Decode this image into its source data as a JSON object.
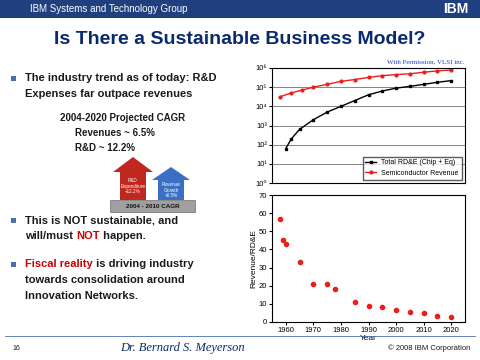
{
  "slide": {
    "header": "IBM Systems and Technology Group",
    "logo": "IBM",
    "title": "Is There a Sustainable Business Model?",
    "bullets": [
      {
        "lines": [
          [
            {
              "text": "The industry trend as of today: R&D"
            }
          ],
          [
            {
              "text": "Expenses far outpace revenues"
            }
          ]
        ]
      },
      {
        "lines": [
          [
            {
              "text": "This is NOT sustainable, and"
            }
          ],
          [
            {
              "text": "will/must "
            },
            {
              "text": "NOT",
              "emphasis": true
            },
            {
              "text": " happen."
            }
          ]
        ]
      },
      {
        "lines": [
          [
            {
              "text": "Fiscal reality",
              "emphasis": true
            },
            {
              "text": " is driving industry"
            }
          ],
          [
            {
              "text": "towards consolidation around"
            }
          ],
          [
            {
              "text": "Innovation Networks."
            }
          ]
        ]
      }
    ],
    "cagr": {
      "heading": "2004-2020 Projected CAGR",
      "items": [
        "Revenues ~ 6.5%",
        "R&D ~ 12.2%"
      ]
    },
    "inset": {
      "arrows": [
        {
          "label": "R&D\nExpenditure\n+12.2%",
          "color": "#c0271f"
        },
        {
          "label": "Revenue\nGrowth\n+6.5%",
          "color": "#3a6fc4"
        }
      ],
      "base": "2004 - 2010 CAGR"
    },
    "footer": {
      "page": "16",
      "author": "Dr. Bernard S. Meyerson",
      "copyright": "© 2008 IBM Corporation"
    }
  },
  "chart_data": [
    {
      "type": "line",
      "source": "With Permission, VLSI inc.",
      "log": "y",
      "grid": true,
      "tick_labels": "y",
      "legend": "lower right",
      "xlim": [
        1955,
        2025
      ],
      "ylim": [
        1,
        1000000
      ],
      "yticks": [
        {
          "value": 1,
          "label": "10⁰"
        },
        {
          "value": 10,
          "label": "10¹"
        },
        {
          "value": 100,
          "label": "10²"
        },
        {
          "value": 1000,
          "label": "10³"
        },
        {
          "value": 10000,
          "label": "10⁴"
        },
        {
          "value": 100000,
          "label": "10⁵"
        },
        {
          "value": 1000000,
          "label": "10⁶"
        }
      ],
      "series": [
        {
          "name": "Total RD&E (Chip + Eq)",
          "color": "#000000",
          "marker": "square",
          "x": [
            1960,
            1962,
            1965,
            1970,
            1975,
            1980,
            1985,
            1990,
            1995,
            2000,
            2005,
            2010,
            2015,
            2020
          ],
          "values": [
            63,
            200,
            630,
            2000,
            5000,
            10000,
            20000,
            40000,
            63000,
            89000,
            110000,
            140000,
            180000,
            220000
          ]
        },
        {
          "name": "Semiconductor Revenue",
          "color": "#e8201c",
          "marker": "circle",
          "x": [
            1958,
            1962,
            1966,
            1970,
            1975,
            1980,
            1985,
            1990,
            1995,
            2000,
            2005,
            2010,
            2015,
            2020
          ],
          "values": [
            32000,
            50000,
            71000,
            100000,
            140000,
            200000,
            250000,
            320000,
            400000,
            450000,
            500000,
            600000,
            710000,
            790000
          ]
        }
      ]
    },
    {
      "type": "scatter",
      "x_label": "Year",
      "y_label": "Revenue/RD&E",
      "xlim": [
        1955,
        2025
      ],
      "ylim": [
        0,
        70
      ],
      "xticks": [
        1960,
        1970,
        1980,
        1990,
        2000,
        2010,
        2020
      ],
      "yticks": [
        0,
        10,
        20,
        30,
        40,
        50,
        60,
        70
      ],
      "series": [
        {
          "name": "Revenue/RD&E",
          "color": "#e8201c",
          "marker": "circle",
          "x": [
            1958,
            1959,
            1960,
            1965,
            1970,
            1975,
            1978,
            1985,
            1990,
            1995,
            2000,
            2005,
            2010,
            2015,
            2020
          ],
          "values": [
            57,
            45,
            43,
            33,
            21,
            21,
            18,
            11,
            9,
            8.5,
            6.5,
            5.5,
            5,
            3.5,
            2.5
          ]
        }
      ]
    }
  ]
}
